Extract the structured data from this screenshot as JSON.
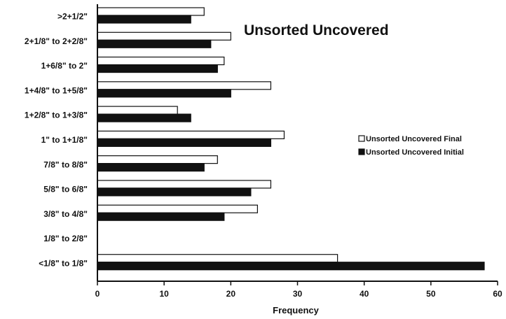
{
  "chart_data": {
    "type": "bar",
    "orientation": "horizontal",
    "title": "Unsorted Uncovered",
    "xlabel": "Frequency",
    "ylabel": "",
    "xlim": [
      0,
      60
    ],
    "x_ticks": [
      "0",
      "10",
      "20",
      "30",
      "40",
      "50",
      "60"
    ],
    "grid": false,
    "legend_position": "right",
    "categories": [
      ">2+1/2\"",
      "2+1/8\" to  2+2/8\"",
      "1+6/8\"  to  2\"",
      "1+4/8\" to  1+5/8\"",
      "1+2/8\" to  1+3/8\"",
      "1\" to 1+1/8\"",
      "7/8\" to 8/8\"",
      "5/8\" to 6/8\"",
      "3/8\" to 4/8\"",
      "1/8\" to 2/8\"",
      "<1/8\" to 1/8\""
    ],
    "series": [
      {
        "name": "Unsorted Uncovered Final",
        "color": "#ffffff",
        "values": [
          16,
          20,
          19,
          26,
          12,
          28,
          18,
          26,
          24,
          0,
          36
        ]
      },
      {
        "name": "Unsorted Uncovered Initial",
        "color": "#111111",
        "values": [
          14,
          17,
          18,
          20,
          14,
          26,
          16,
          23,
          19,
          0,
          58
        ]
      }
    ]
  }
}
